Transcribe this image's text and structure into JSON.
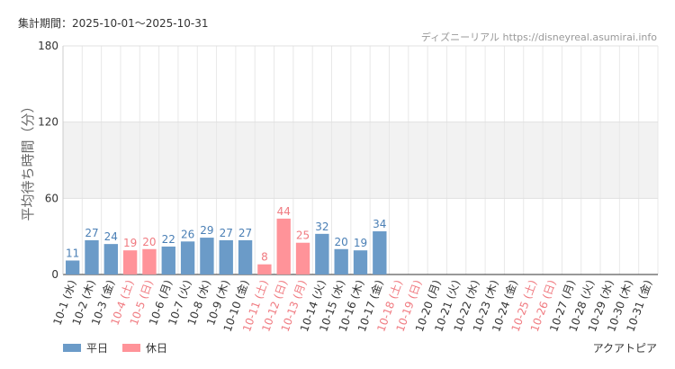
{
  "header": {
    "period_label": "集計期間：2025-10-01〜2025-10-31",
    "source": "ディズニーリアル https://disneyreal.asumirai.info"
  },
  "footer": {
    "attraction": "アクアトピア"
  },
  "colors": {
    "weekday": "#6b9bc8",
    "holiday": "#ff9399",
    "weekday_text": "#4a7fb5",
    "holiday_text": "#f07a80",
    "band": "#f2f2f2"
  },
  "chart_data": {
    "type": "bar",
    "ylabel": "平均待ち時間（分）",
    "ylim": [
      0,
      180
    ],
    "yticks": [
      0,
      60,
      120,
      180
    ],
    "grid": true,
    "legend_position": "bottom-left",
    "categories": [
      "10-1 (水)",
      "10-2 (木)",
      "10-3 (金)",
      "10-4 (土)",
      "10-5 (日)",
      "10-6 (月)",
      "10-7 (火)",
      "10-8 (水)",
      "10-9 (木)",
      "10-10 (金)",
      "10-11 (土)",
      "10-12 (日)",
      "10-13 (月)",
      "10-14 (火)",
      "10-15 (水)",
      "10-16 (木)",
      "10-17 (金)",
      "10-18 (土)",
      "10-19 (日)",
      "10-20 (月)",
      "10-21 (火)",
      "10-22 (水)",
      "10-23 (木)",
      "10-24 (金)",
      "10-25 (土)",
      "10-26 (日)",
      "10-27 (月)",
      "10-28 (火)",
      "10-29 (水)",
      "10-30 (木)",
      "10-31 (金)"
    ],
    "values": [
      11,
      27,
      24,
      19,
      20,
      22,
      26,
      29,
      27,
      27,
      8,
      44,
      25,
      32,
      20,
      19,
      34,
      null,
      null,
      null,
      null,
      null,
      null,
      null,
      null,
      null,
      null,
      null,
      null,
      null,
      null
    ],
    "day_type": [
      "weekday",
      "weekday",
      "weekday",
      "holiday",
      "holiday",
      "weekday",
      "weekday",
      "weekday",
      "weekday",
      "weekday",
      "holiday",
      "holiday",
      "holiday",
      "weekday",
      "weekday",
      "weekday",
      "weekday",
      "holiday",
      "holiday",
      "weekday",
      "weekday",
      "weekday",
      "weekday",
      "weekday",
      "holiday",
      "holiday",
      "weekday",
      "weekday",
      "weekday",
      "weekday",
      "weekday"
    ],
    "series": [
      {
        "name": "平日",
        "key": "weekday"
      },
      {
        "name": "休日",
        "key": "holiday"
      }
    ]
  }
}
